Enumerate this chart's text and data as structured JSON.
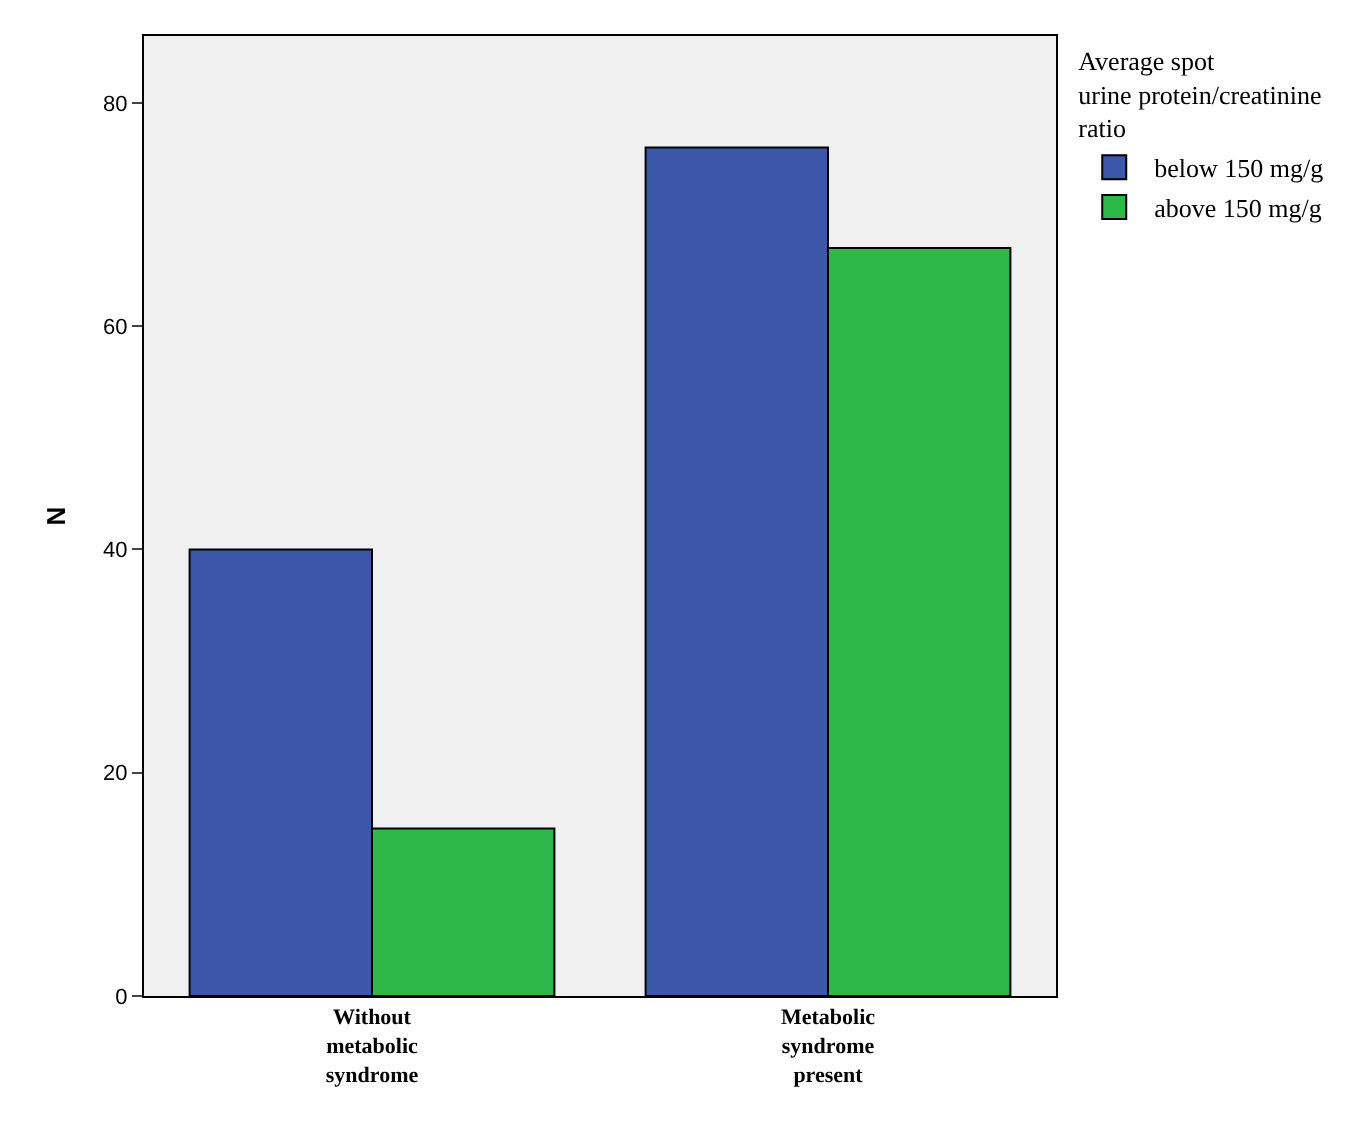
{
  "chart_data": {
    "type": "bar",
    "ylabel": "N",
    "legend_title": "Average spot\nurine protein/creatinine\nratio",
    "categories": [
      "Without\nmetabolic\nsyndrome",
      "Metabolic\nsyndrome\npresent"
    ],
    "series": [
      {
        "name": "below 150 mg/g",
        "color": "#3c56a8",
        "values": [
          40,
          76
        ]
      },
      {
        "name": "above 150 mg/g",
        "color": "#2eb84a",
        "values": [
          15,
          67
        ]
      }
    ],
    "ylim": [
      0,
      86
    ],
    "yticks": [
      0,
      20,
      40,
      60,
      80
    ],
    "grid": false,
    "legend": "right"
  }
}
